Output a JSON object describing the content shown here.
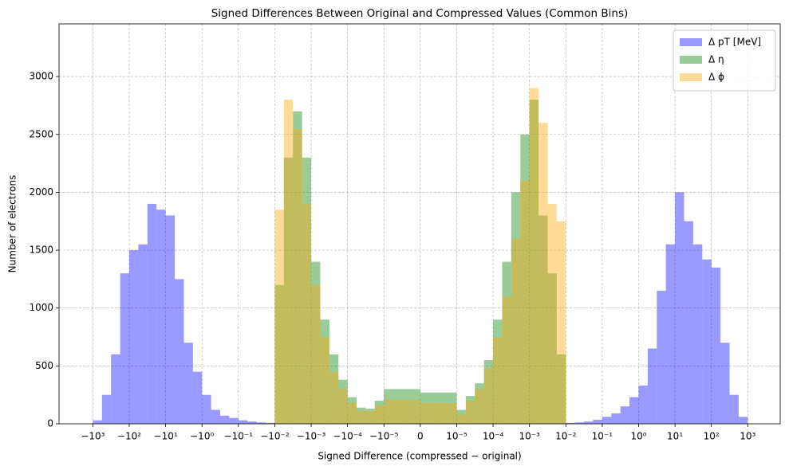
{
  "chart_data": {
    "type": "histogram",
    "title": "Signed Differences Between Original and Compressed Values (Common Bins)",
    "xlabel": "Signed Difference  (compressed − original)",
    "ylabel": "Number of electrons",
    "xscale": "symlog",
    "linthresh": 1e-05,
    "alpha": 0.4,
    "grid": true,
    "legend": "upper right",
    "bins": [
      -1000,
      -562.3,
      -316.2,
      -177.8,
      -100,
      -56.23,
      -31.62,
      -17.78,
      -10,
      -5.623,
      -3.162,
      -1.778,
      -1,
      -0.5623,
      -0.3162,
      -0.1778,
      -0.1,
      -0.05623,
      -0.03162,
      -0.01778,
      -0.01,
      -0.005623,
      -0.003162,
      -0.001778,
      -0.001,
      -0.0005623,
      -0.0003162,
      -0.0001778,
      -0.0001,
      -5.623e-05,
      -3.162e-05,
      -1.778e-05,
      -1e-05,
      0,
      1e-05,
      1.778e-05,
      3.162e-05,
      5.623e-05,
      0.0001,
      0.0001778,
      0.0003162,
      0.0005623,
      0.001,
      0.001778,
      0.003162,
      0.005623,
      0.01,
      0.01778,
      0.03162,
      0.05623,
      0.1,
      0.1778,
      0.3162,
      0.5623,
      1,
      1.778,
      3.162,
      5.623,
      10,
      17.78,
      31.62,
      56.23,
      100,
      177.8,
      316.2,
      562.3,
      1000
    ],
    "series": [
      {
        "name": "Δ pT [MeV]",
        "color": "blue",
        "values": [
          30,
          250,
          600,
          1300,
          1500,
          1550,
          1900,
          1850,
          1800,
          1250,
          700,
          450,
          250,
          120,
          70,
          50,
          30,
          20,
          12,
          8,
          0,
          0,
          0,
          0,
          0,
          0,
          0,
          0,
          0,
          0,
          0,
          0,
          0,
          0,
          0,
          0,
          0,
          0,
          0,
          0,
          0,
          0,
          0,
          0,
          0,
          0,
          8,
          12,
          20,
          35,
          60,
          90,
          150,
          230,
          330,
          650,
          1150,
          1550,
          2000,
          1750,
          1550,
          1420,
          1350,
          700,
          250,
          60
        ]
      },
      {
        "name": "Δ η",
        "color": "green",
        "values": [
          0,
          0,
          0,
          0,
          0,
          0,
          0,
          0,
          0,
          0,
          0,
          0,
          0,
          0,
          0,
          0,
          0,
          0,
          0,
          0,
          1200,
          2300,
          2700,
          2300,
          1400,
          900,
          600,
          380,
          230,
          140,
          130,
          200,
          300,
          270,
          120,
          240,
          350,
          550,
          900,
          1400,
          2000,
          2500,
          2800,
          1800,
          1300,
          600,
          0,
          0,
          0,
          0,
          0,
          0,
          0,
          0,
          0,
          0,
          0,
          0,
          0,
          0,
          0,
          0,
          0,
          0,
          0,
          0
        ]
      },
      {
        "name": "Δ ϕ",
        "color": "orange",
        "values": [
          0,
          0,
          0,
          0,
          0,
          0,
          0,
          0,
          0,
          0,
          0,
          0,
          0,
          0,
          0,
          0,
          0,
          0,
          0,
          0,
          1850,
          2800,
          2550,
          1900,
          1200,
          750,
          450,
          300,
          180,
          110,
          110,
          160,
          210,
          180,
          80,
          200,
          300,
          480,
          750,
          1100,
          1600,
          2100,
          2900,
          2600,
          1900,
          1750,
          0,
          0,
          0,
          0,
          0,
          0,
          0,
          0,
          0,
          0,
          0,
          0,
          0,
          0,
          0,
          0,
          0,
          0,
          0,
          0
        ]
      }
    ],
    "xlim": [
      -8500,
      7800
    ],
    "ylim": [
      0,
      3455
    ],
    "xticks": [
      {
        "value": -1000,
        "label": "−10³"
      },
      {
        "value": -100,
        "label": "−10²"
      },
      {
        "value": -10,
        "label": "−10¹"
      },
      {
        "value": -1,
        "label": "−10⁰"
      },
      {
        "value": -0.1,
        "label": "−10⁻¹"
      },
      {
        "value": -0.01,
        "label": "−10⁻²"
      },
      {
        "value": -0.001,
        "label": "−10⁻³"
      },
      {
        "value": -0.0001,
        "label": "−10⁻⁴"
      },
      {
        "value": -1e-05,
        "label": "−10⁻⁵"
      },
      0,
      {
        "value": 1e-05,
        "label": "10⁻⁵"
      },
      {
        "value": 0.0001,
        "label": "10⁻⁴"
      },
      {
        "value": 0.001,
        "label": "10⁻³"
      },
      {
        "value": 0.01,
        "label": "10⁻²"
      },
      {
        "value": 0.1,
        "label": "10⁻¹"
      },
      {
        "value": 1,
        "label": "10⁰"
      },
      {
        "value": 10,
        "label": "10¹"
      },
      {
        "value": 100,
        "label": "10²"
      },
      {
        "value": 1000,
        "label": "10³"
      }
    ],
    "yticks": [
      0,
      500,
      1000,
      1500,
      2000,
      2500,
      3000
    ]
  }
}
